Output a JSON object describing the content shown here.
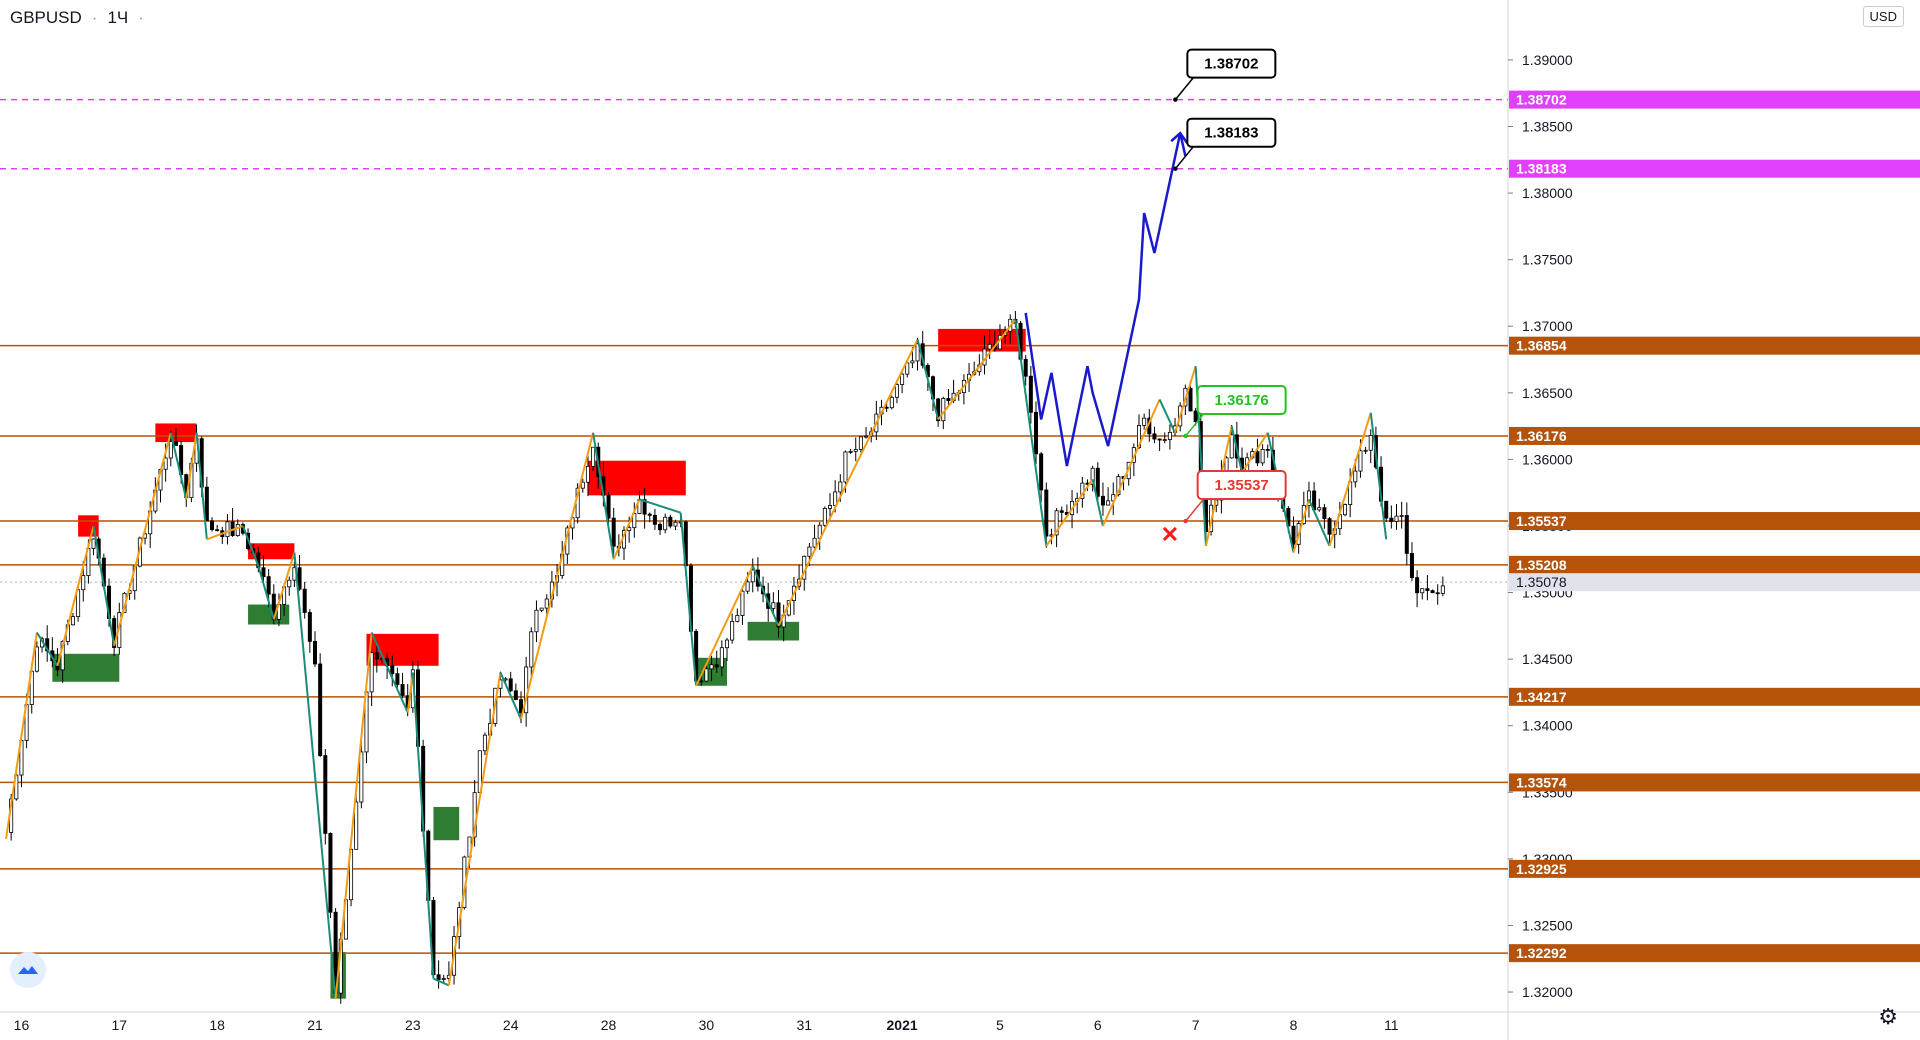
{
  "header": {
    "symbol": "GBPUSD",
    "interval": "1Ч",
    "dot": "·"
  },
  "currency_button": "USD",
  "icons": {
    "logo": "tradingview-logo-icon",
    "settings": "gear-icon"
  },
  "colors": {
    "level_line": "#b45309",
    "level_badge": "#b45309",
    "target_line": "#e040fb",
    "target_badge": "#e040fb",
    "candle_up": "#000000",
    "candle_down": "#000000",
    "zigzag_up": "#f39c12",
    "zigzag_down": "#1a8c7a",
    "supply_zone": "#ff0000",
    "demand_zone": "#2e7d32",
    "forecast": "#1a1acd",
    "callout_green": "#22c322",
    "callout_red": "#e53935"
  },
  "chart_data": {
    "type": "candlestick",
    "symbol": "GBPUSD",
    "timeframe": "1Ч",
    "ylim": [
      1.3185,
      1.3945
    ],
    "y_ticks": [
      "1.39000",
      "1.38500",
      "1.38000",
      "1.37500",
      "1.37000",
      "1.36500",
      "1.36000",
      "1.35500",
      "1.35000",
      "1.34500",
      "1.34000",
      "1.33500",
      "1.33000",
      "1.32500",
      "1.32000"
    ],
    "x_ticks": [
      {
        "label": "16",
        "bar": 3
      },
      {
        "label": "17",
        "bar": 22
      },
      {
        "label": "18",
        "bar": 41
      },
      {
        "label": "21",
        "bar": 60
      },
      {
        "label": "23",
        "bar": 79
      },
      {
        "label": "24",
        "bar": 98
      },
      {
        "label": "28",
        "bar": 117
      },
      {
        "label": "30",
        "bar": 136
      },
      {
        "label": "31",
        "bar": 155
      },
      {
        "label": "2021",
        "bar": 174,
        "bold": true
      },
      {
        "label": "5",
        "bar": 193
      },
      {
        "label": "6",
        "bar": 212
      },
      {
        "label": "7",
        "bar": 231
      },
      {
        "label": "8",
        "bar": 250
      },
      {
        "label": "11",
        "bar": 269
      }
    ],
    "horizontal_levels": [
      {
        "price": 1.36854,
        "label": "1.36854"
      },
      {
        "price": 1.36176,
        "label": "1.36176"
      },
      {
        "price": 1.35537,
        "label": "1.35537"
      },
      {
        "price": 1.35208,
        "label": "1.35208"
      },
      {
        "price": 1.34217,
        "label": "1.34217"
      },
      {
        "price": 1.33574,
        "label": "1.33574"
      },
      {
        "price": 1.32925,
        "label": "1.32925"
      },
      {
        "price": 1.32292,
        "label": "1.32292"
      }
    ],
    "target_levels": [
      {
        "price": 1.38702,
        "label": "1.38702"
      },
      {
        "price": 1.38183,
        "label": "1.38183"
      }
    ],
    "current_price": {
      "price": 1.35078,
      "label": "1.35078"
    },
    "callouts": [
      {
        "text": "1.38702",
        "price": 1.38702,
        "bar": 229,
        "style": "black"
      },
      {
        "text": "1.38183",
        "price": 1.38183,
        "bar": 229,
        "style": "black"
      },
      {
        "text": "1.36176",
        "price": 1.36176,
        "bar": 231,
        "style": "green"
      },
      {
        "text": "1.35537",
        "price": 1.35537,
        "bar": 231,
        "style": "red"
      }
    ],
    "cross_marker": {
      "price": 1.3544,
      "bar": 226
    },
    "supply_zones": [
      {
        "b0": 14.0,
        "b1": 18.0,
        "top": 1.3558,
        "bottom": 1.3542
      },
      {
        "b0": 29.0,
        "b1": 37.0,
        "top": 1.3627,
        "bottom": 1.3613
      },
      {
        "b0": 47.0,
        "b1": 56.0,
        "top": 1.3537,
        "bottom": 1.3525
      },
      {
        "b0": 70.0,
        "b1": 84.0,
        "top": 1.3469,
        "bottom": 1.3445
      },
      {
        "b0": 113.0,
        "b1": 132.0,
        "top": 1.3599,
        "bottom": 1.3573
      },
      {
        "b0": 181.0,
        "b1": 198.0,
        "top": 1.3698,
        "bottom": 1.3681
      }
    ],
    "demand_zones": [
      {
        "b0": 9.0,
        "b1": 22.0,
        "top": 1.3454,
        "bottom": 1.3433
      },
      {
        "b0": 47.0,
        "b1": 55.0,
        "top": 1.3491,
        "bottom": 1.3476
      },
      {
        "b0": 63.0,
        "b1": 66.0,
        "top": 1.323,
        "bottom": 1.3195
      },
      {
        "b0": 83.0,
        "b1": 88.0,
        "top": 1.3339,
        "bottom": 1.3314
      },
      {
        "b0": 134.0,
        "b1": 140.0,
        "top": 1.3451,
        "bottom": 1.343
      },
      {
        "b0": 144.0,
        "b1": 154.0,
        "top": 1.3478,
        "bottom": 1.3464
      }
    ],
    "zigzag": [
      [
        0,
        1.3315
      ],
      [
        6,
        1.347
      ],
      [
        10,
        1.3445
      ],
      [
        17,
        1.355
      ],
      [
        21,
        1.346
      ],
      [
        32,
        1.362
      ],
      [
        35,
        1.357
      ],
      [
        37,
        1.362
      ],
      [
        39,
        1.354
      ],
      [
        46,
        1.355
      ],
      [
        49,
        1.352
      ],
      [
        52,
        1.348
      ],
      [
        56,
        1.353
      ],
      [
        64,
        1.3195
      ],
      [
        71,
        1.347
      ],
      [
        78,
        1.341
      ],
      [
        79,
        1.344
      ],
      [
        83,
        1.321
      ],
      [
        86,
        1.3205
      ],
      [
        96,
        1.344
      ],
      [
        100,
        1.3405
      ],
      [
        114,
        1.362
      ],
      [
        118,
        1.3525
      ],
      [
        123,
        1.357
      ],
      [
        131,
        1.356
      ],
      [
        134,
        1.343
      ],
      [
        145,
        1.352
      ],
      [
        150,
        1.3475
      ],
      [
        163,
        1.358
      ],
      [
        177,
        1.369
      ],
      [
        181,
        1.363
      ],
      [
        196,
        1.3705
      ],
      [
        202,
        1.3535
      ],
      [
        211,
        1.3585
      ],
      [
        213,
        1.355
      ],
      [
        224,
        1.3645
      ],
      [
        227,
        1.362
      ],
      [
        231,
        1.367
      ],
      [
        233,
        1.3535
      ],
      [
        238,
        1.3625
      ],
      [
        240,
        1.359
      ],
      [
        245,
        1.362
      ],
      [
        250,
        1.353
      ],
      [
        253,
        1.357
      ],
      [
        257,
        1.3535
      ],
      [
        265,
        1.3635
      ],
      [
        268,
        1.354
      ]
    ],
    "forecast": [
      [
        198,
        1.371
      ],
      [
        201,
        1.363
      ],
      [
        203,
        1.3665
      ],
      [
        206,
        1.3595
      ],
      [
        210,
        1.367
      ],
      [
        211,
        1.365
      ],
      [
        214,
        1.361
      ],
      [
        220,
        1.372
      ],
      [
        221,
        1.3785
      ],
      [
        223,
        1.3755
      ],
      [
        228,
        1.3845
      ],
      [
        229,
        1.3828
      ]
    ],
    "forecast_arrow_tip": [
      228,
      1.3845
    ],
    "anchors": [
      [
        0,
        1.332
      ],
      [
        6,
        1.3465
      ],
      [
        10,
        1.3445
      ],
      [
        17,
        1.3545
      ],
      [
        21,
        1.3465
      ],
      [
        32,
        1.3618
      ],
      [
        35,
        1.3575
      ],
      [
        37,
        1.3618
      ],
      [
        39,
        1.355
      ],
      [
        46,
        1.3545
      ],
      [
        49,
        1.352
      ],
      [
        52,
        1.3485
      ],
      [
        56,
        1.3525
      ],
      [
        60,
        1.344
      ],
      [
        64,
        1.32
      ],
      [
        66,
        1.327
      ],
      [
        71,
        1.346
      ],
      [
        74,
        1.344
      ],
      [
        78,
        1.341
      ],
      [
        79,
        1.344
      ],
      [
        83,
        1.3215
      ],
      [
        86,
        1.321
      ],
      [
        92,
        1.338
      ],
      [
        96,
        1.3435
      ],
      [
        100,
        1.3415
      ],
      [
        103,
        1.349
      ],
      [
        107,
        1.351
      ],
      [
        110,
        1.356
      ],
      [
        114,
        1.3615
      ],
      [
        118,
        1.353
      ],
      [
        121,
        1.3555
      ],
      [
        123,
        1.357
      ],
      [
        127,
        1.355
      ],
      [
        131,
        1.356
      ],
      [
        134,
        1.3435
      ],
      [
        139,
        1.3455
      ],
      [
        145,
        1.3515
      ],
      [
        150,
        1.348
      ],
      [
        156,
        1.3535
      ],
      [
        160,
        1.3565
      ],
      [
        163,
        1.36
      ],
      [
        167,
        1.3615
      ],
      [
        171,
        1.364
      ],
      [
        177,
        1.368
      ],
      [
        181,
        1.3635
      ],
      [
        187,
        1.366
      ],
      [
        193,
        1.3695
      ],
      [
        196,
        1.37
      ],
      [
        199,
        1.364
      ],
      [
        202,
        1.3545
      ],
      [
        206,
        1.3565
      ],
      [
        211,
        1.359
      ],
      [
        213,
        1.356
      ],
      [
        217,
        1.359
      ],
      [
        221,
        1.363
      ],
      [
        224,
        1.3615
      ],
      [
        227,
        1.3625
      ],
      [
        229,
        1.366
      ],
      [
        231,
        1.3625
      ],
      [
        233,
        1.3545
      ],
      [
        238,
        1.362
      ],
      [
        240,
        1.3595
      ],
      [
        245,
        1.361
      ],
      [
        248,
        1.356
      ],
      [
        250,
        1.354
      ],
      [
        253,
        1.357
      ],
      [
        257,
        1.3545
      ],
      [
        261,
        1.358
      ],
      [
        265,
        1.362
      ],
      [
        268,
        1.355
      ],
      [
        271,
        1.3555
      ],
      [
        273,
        1.351
      ],
      [
        276,
        1.3495
      ],
      [
        279,
        1.3505
      ]
    ]
  }
}
